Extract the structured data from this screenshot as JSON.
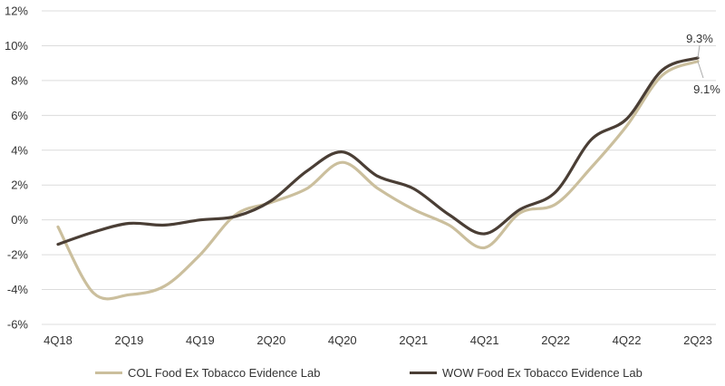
{
  "chart_data": {
    "type": "line",
    "title": "",
    "xlabel": "",
    "ylabel": "",
    "x_tick_labels": [
      "4Q18",
      "2Q19",
      "4Q19",
      "2Q20",
      "4Q20",
      "2Q21",
      "4Q21",
      "2Q22",
      "4Q22",
      "2Q23"
    ],
    "y_tick_labels": [
      "-6%",
      "-4%",
      "-2%",
      "0%",
      "2%",
      "4%",
      "6%",
      "8%",
      "10%",
      "12%"
    ],
    "ylim": [
      -6,
      12
    ],
    "x": [
      "4Q18",
      "1Q19",
      "2Q19",
      "3Q19",
      "4Q19",
      "1Q20",
      "2Q20",
      "3Q20",
      "4Q20",
      "1Q21",
      "2Q21",
      "3Q21",
      "4Q21",
      "1Q22",
      "2Q22",
      "3Q22",
      "4Q22",
      "1Q23",
      "2Q23"
    ],
    "series": [
      {
        "name": "COL Food Ex Tobacco Evidence Lab",
        "color": "#cbbf9d",
        "values": [
          -0.4,
          -4.2,
          -4.3,
          -3.8,
          -2.0,
          0.3,
          1.0,
          1.8,
          3.3,
          1.8,
          0.6,
          -0.3,
          -1.6,
          0.4,
          0.9,
          3.0,
          5.4,
          8.3,
          9.1
        ]
      },
      {
        "name": "WOW Food Ex Tobacco Evidence Lab",
        "color": "#4a3e35",
        "values": [
          -1.4,
          -0.7,
          -0.2,
          -0.3,
          0.0,
          0.2,
          1.1,
          2.8,
          3.9,
          2.5,
          1.8,
          0.3,
          -0.8,
          0.6,
          1.6,
          4.6,
          5.8,
          8.6,
          9.3
        ]
      }
    ],
    "data_labels": [
      "9.3%",
      "9.1%"
    ],
    "grid": true,
    "legend_position": "bottom"
  }
}
